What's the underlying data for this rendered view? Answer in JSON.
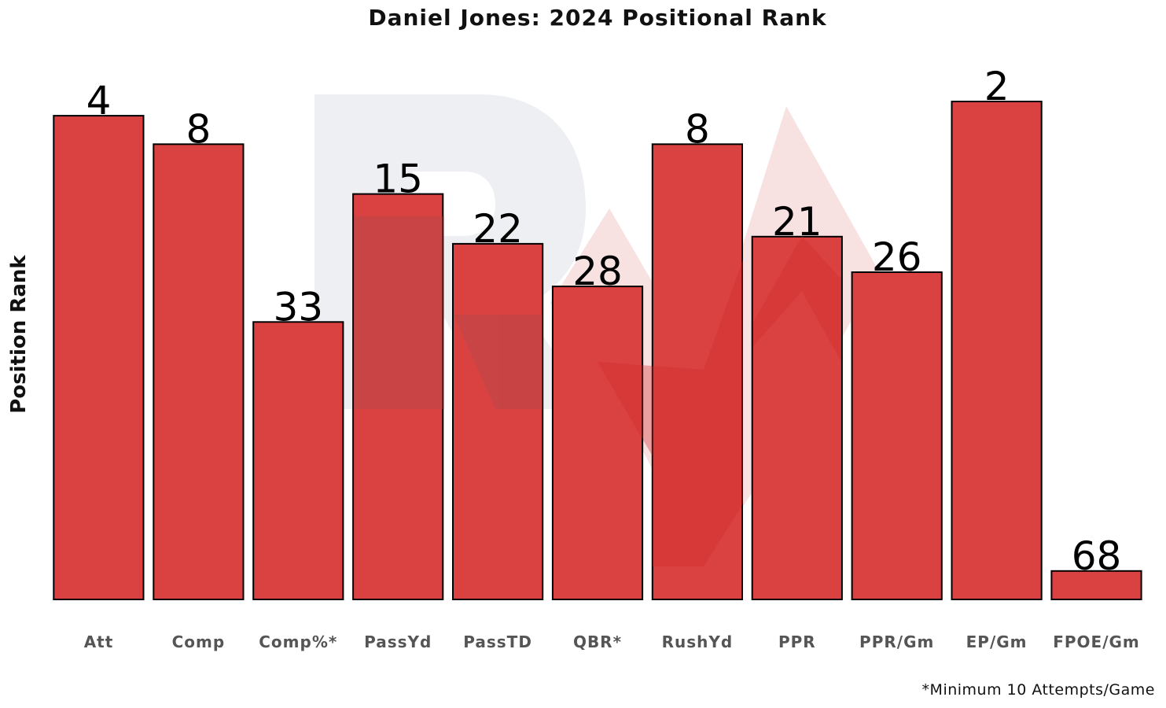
{
  "chart_data": {
    "type": "bar",
    "title": "Daniel Jones: 2024 Positional Rank",
    "xlabel": "",
    "ylabel": "Position Rank",
    "categories": [
      "Att",
      "Comp",
      "Comp%*",
      "PassYd",
      "PassTD",
      "QBR*",
      "RushYd",
      "PPR",
      "PPR/Gm",
      "EP/Gm",
      "FPOE/Gm"
    ],
    "values": [
      4,
      8,
      33,
      15,
      22,
      28,
      8,
      21,
      26,
      2,
      68
    ],
    "y_axis_inverted": true,
    "ylim": [
      1,
      72
    ],
    "grid": false,
    "legend": "none",
    "footnote": "*Minimum 10 Attempts/Game",
    "bar_color": "#d93c3c",
    "bar_edge_color": "#000000",
    "tick_label_color": "#555555",
    "watermark": {
      "letter": "R",
      "letter_color": "#eeeff2",
      "shape_color": "#f8e1e1",
      "overlay_color": "#c94848"
    }
  }
}
